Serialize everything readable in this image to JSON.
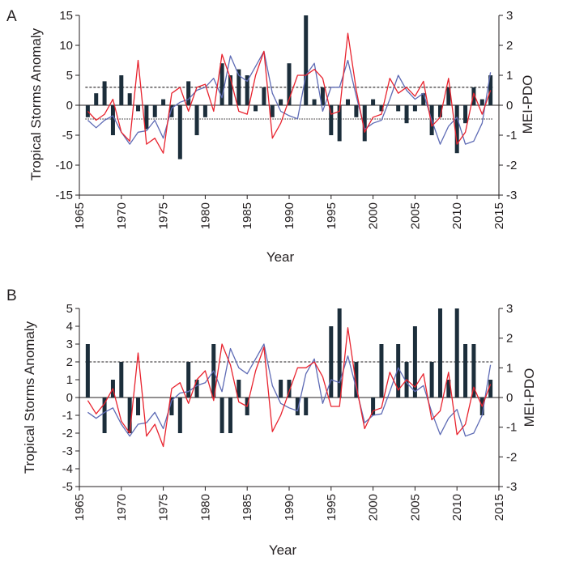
{
  "colors": {
    "bars": "#1c2e3b",
    "mei": "#e8232e",
    "pdo": "#5e6bb5",
    "axis": "#231f20"
  },
  "chart_data": [
    {
      "panel": "A",
      "type": "bar+line",
      "xlabel": "Year",
      "ylabel": "Tropical Storms Anomaly",
      "y2label": "MEI-PDO",
      "xlim": [
        1965,
        2015
      ],
      "ylim": [
        -15,
        15
      ],
      "y2lim": [
        -3,
        3
      ],
      "x_ticks": [
        1965,
        1970,
        1975,
        1980,
        1985,
        1990,
        1995,
        2000,
        2005,
        2010,
        2015
      ],
      "x_tick_labels": [
        "1965",
        "1970",
        "1975",
        "1980",
        "1985",
        "1990",
        "1995",
        "2000",
        "2005",
        "2010",
        "2015"
      ],
      "y_ticks": [
        15,
        10,
        5,
        0,
        -5,
        -10,
        -15
      ],
      "y_tick_labels": [
        "15",
        "10",
        "5",
        "0",
        "-5",
        "-10",
        "-15"
      ],
      "y2_ticks": [
        3,
        2,
        1,
        0,
        -1,
        -2,
        -3
      ],
      "y2_tick_labels": [
        "3",
        "2",
        "1",
        "0",
        "-1",
        "-2",
        "-3"
      ],
      "threshold_upper": 3,
      "threshold_lower": -2.3,
      "series": [
        {
          "name": "Tropical Storms Anomaly",
          "kind": "bar",
          "axis": "left",
          "x": [
            1966,
            1967,
            1968,
            1969,
            1970,
            1971,
            1972,
            1973,
            1974,
            1975,
            1976,
            1977,
            1978,
            1979,
            1980,
            1981,
            1982,
            1983,
            1984,
            1985,
            1986,
            1987,
            1988,
            1989,
            1990,
            1991,
            1992,
            1993,
            1994,
            1995,
            1996,
            1997,
            1998,
            1999,
            2000,
            2001,
            2002,
            2003,
            2004,
            2005,
            2006,
            2007,
            2008,
            2009,
            2010,
            2011,
            2012,
            2013,
            2014
          ],
          "values": [
            -2,
            2,
            4,
            -5,
            5,
            2,
            -1,
            -4,
            -2,
            1,
            -2,
            -9,
            4,
            -5,
            -2,
            0,
            7,
            5,
            6,
            5,
            -1,
            3,
            -2,
            1,
            7,
            0,
            15,
            1,
            3,
            -5,
            -6,
            1,
            -2,
            -6,
            1,
            -1,
            0,
            -1,
            -3,
            -1,
            2,
            -5,
            -2,
            3,
            -8,
            -3,
            3,
            1,
            5
          ]
        },
        {
          "name": "MEI",
          "kind": "line",
          "axis": "right",
          "x": [
            1966,
            1967,
            1968,
            1969,
            1970,
            1971,
            1972,
            1973,
            1974,
            1975,
            1976,
            1977,
            1978,
            1979,
            1980,
            1981,
            1982,
            1983,
            1984,
            1985,
            1986,
            1987,
            1988,
            1989,
            1990,
            1991,
            1992,
            1993,
            1994,
            1995,
            1996,
            1997,
            1998,
            1999,
            2000,
            2001,
            2002,
            2003,
            2004,
            2005,
            2006,
            2007,
            2008,
            2009,
            2010,
            2011,
            2012,
            2013,
            2014
          ],
          "values": [
            -0.2,
            -0.5,
            -0.3,
            0.2,
            -0.9,
            -1.2,
            1.5,
            -1.3,
            -1.1,
            -1.6,
            0.4,
            0.6,
            -0.2,
            0.6,
            0.7,
            -0.2,
            1.7,
            0.9,
            -0.2,
            -0.3,
            1.0,
            1.8,
            -1.1,
            -0.6,
            0.2,
            1.0,
            1.0,
            1.2,
            0.9,
            -0.3,
            -0.2,
            2.4,
            0.5,
            -0.9,
            -0.4,
            -0.3,
            0.9,
            0.4,
            0.6,
            0.3,
            0.8,
            -0.7,
            -0.4,
            0.9,
            -1.3,
            -0.9,
            0.4,
            -0.3,
            0.5
          ]
        },
        {
          "name": "PDO",
          "kind": "line",
          "axis": "right",
          "x": [
            1966,
            1967,
            1968,
            1969,
            1970,
            1971,
            1972,
            1973,
            1974,
            1975,
            1976,
            1977,
            1978,
            1979,
            1980,
            1981,
            1982,
            1983,
            1984,
            1985,
            1986,
            1987,
            1988,
            1989,
            1990,
            1991,
            1992,
            1993,
            1994,
            1995,
            1996,
            1997,
            1998,
            1999,
            2000,
            2001,
            2002,
            2003,
            2004,
            2005,
            2006,
            2007,
            2008,
            2009,
            2010,
            2011,
            2012,
            2013,
            2014
          ],
          "values": [
            -0.5,
            -0.75,
            -0.5,
            -0.35,
            -0.9,
            -1.3,
            -0.9,
            -0.85,
            -0.5,
            -1.1,
            -0.1,
            0.1,
            0.2,
            0.5,
            0.6,
            0.9,
            0.25,
            1.65,
            1.0,
            0.8,
            1.3,
            1.8,
            0.4,
            -0.2,
            -0.35,
            -0.45,
            1.0,
            1.4,
            -0.2,
            0.6,
            0.6,
            1.5,
            0.3,
            -0.8,
            -0.6,
            -0.5,
            0.2,
            1.0,
            0.5,
            0.2,
            0.4,
            -0.5,
            -1.3,
            -0.7,
            -0.4,
            -1.3,
            -1.2,
            -0.6,
            1.1
          ]
        }
      ]
    },
    {
      "panel": "B",
      "type": "bar+line",
      "xlabel": "Year",
      "ylabel": "Tropical Storms Anomaly",
      "y2label": "MEI-PDO",
      "xlim": [
        1965,
        2015
      ],
      "ylim": [
        -5,
        5
      ],
      "y2lim": [
        -3,
        3
      ],
      "x_ticks": [
        1965,
        1970,
        1975,
        1980,
        1985,
        1990,
        1995,
        2000,
        2005,
        2010,
        2015
      ],
      "x_tick_labels": [
        "1965",
        "1970",
        "1975",
        "1980",
        "1985",
        "1990",
        "1995",
        "2000",
        "2005",
        "2010",
        "2015"
      ],
      "y_ticks": [
        5,
        4,
        3,
        2,
        1,
        0,
        -1,
        -2,
        -3,
        -4,
        -5
      ],
      "y_tick_labels": [
        "5",
        "4",
        "3",
        "2",
        "1",
        "0",
        "-1",
        "-2",
        "-3",
        "-4",
        "-5"
      ],
      "y2_ticks": [
        3,
        2,
        1,
        0,
        -1,
        -2,
        -3
      ],
      "y2_tick_labels": [
        "3",
        "2",
        "1",
        "0",
        "-1",
        "-2",
        "-3"
      ],
      "threshold_upper": 2,
      "series": [
        {
          "name": "Tropical Storms Anomaly",
          "kind": "bar",
          "axis": "left",
          "x": [
            1966,
            1967,
            1968,
            1969,
            1970,
            1971,
            1972,
            1973,
            1974,
            1975,
            1976,
            1977,
            1978,
            1979,
            1980,
            1981,
            1982,
            1983,
            1984,
            1985,
            1986,
            1987,
            1988,
            1989,
            1990,
            1991,
            1992,
            1993,
            1994,
            1995,
            1996,
            1997,
            1998,
            1999,
            2000,
            2001,
            2002,
            2003,
            2004,
            2005,
            2006,
            2007,
            2008,
            2009,
            2010,
            2011,
            2012,
            2013,
            2014
          ],
          "values": [
            3,
            0,
            -2,
            1,
            2,
            -2,
            -1,
            0,
            0,
            0,
            -1,
            -2,
            2,
            1,
            0,
            3,
            -2,
            -2,
            1,
            -1,
            0,
            0,
            0,
            1,
            1,
            -1,
            -1,
            0,
            0,
            4,
            5,
            0,
            2,
            0,
            -1,
            3,
            0,
            3,
            2,
            4,
            0,
            2,
            5,
            1,
            5,
            3,
            3,
            -1,
            1
          ]
        },
        {
          "name": "MEI",
          "kind": "line",
          "axis": "right",
          "x": [
            1966,
            1967,
            1968,
            1969,
            1970,
            1971,
            1972,
            1973,
            1974,
            1975,
            1976,
            1977,
            1978,
            1979,
            1980,
            1981,
            1982,
            1983,
            1984,
            1985,
            1986,
            1987,
            1988,
            1989,
            1990,
            1991,
            1992,
            1993,
            1994,
            1995,
            1996,
            1997,
            1998,
            1999,
            2000,
            2001,
            2002,
            2003,
            2004,
            2005,
            2006,
            2007,
            2008,
            2009,
            2010,
            2011,
            2012,
            2013,
            2014
          ],
          "values": [
            -0.1,
            -0.55,
            -0.2,
            0.3,
            -0.8,
            -1.2,
            1.5,
            -1.3,
            -0.9,
            -1.65,
            0.3,
            0.5,
            -0.2,
            0.6,
            0.9,
            -0.1,
            1.8,
            1.1,
            -0.15,
            -0.3,
            0.9,
            1.7,
            -1.15,
            -0.6,
            0.2,
            1.0,
            1.0,
            1.2,
            0.7,
            -0.3,
            -0.3,
            2.35,
            0.4,
            -1.05,
            -0.45,
            -0.35,
            0.85,
            0.25,
            0.6,
            0.35,
            0.8,
            -0.75,
            -0.45,
            0.85,
            -1.25,
            -0.9,
            0.35,
            -0.3,
            0.45
          ]
        },
        {
          "name": "PDO",
          "kind": "line",
          "axis": "right",
          "x": [
            1966,
            1967,
            1968,
            1969,
            1970,
            1971,
            1972,
            1973,
            1974,
            1975,
            1976,
            1977,
            1978,
            1979,
            1980,
            1981,
            1982,
            1983,
            1984,
            1985,
            1986,
            1987,
            1988,
            1989,
            1990,
            1991,
            1992,
            1993,
            1994,
            1995,
            1996,
            1997,
            1998,
            1999,
            2000,
            2001,
            2002,
            2003,
            2004,
            2005,
            2006,
            2007,
            2008,
            2009,
            2010,
            2011,
            2012,
            2013,
            2014
          ],
          "values": [
            -0.5,
            -0.7,
            -0.5,
            -0.35,
            -0.9,
            -1.3,
            -0.9,
            -0.85,
            -0.5,
            -1.05,
            -0.1,
            0.15,
            0.2,
            0.4,
            0.5,
            0.9,
            0.2,
            1.65,
            1.0,
            0.8,
            1.3,
            1.8,
            0.4,
            -0.2,
            -0.35,
            -0.45,
            0.8,
            1.3,
            -0.2,
            0.6,
            0.5,
            1.4,
            0.3,
            -0.85,
            -0.6,
            -0.55,
            0.2,
            1.0,
            0.5,
            0.2,
            0.4,
            -0.5,
            -1.25,
            -0.7,
            -0.4,
            -1.3,
            -1.2,
            -0.6,
            1.1
          ]
        }
      ]
    }
  ]
}
